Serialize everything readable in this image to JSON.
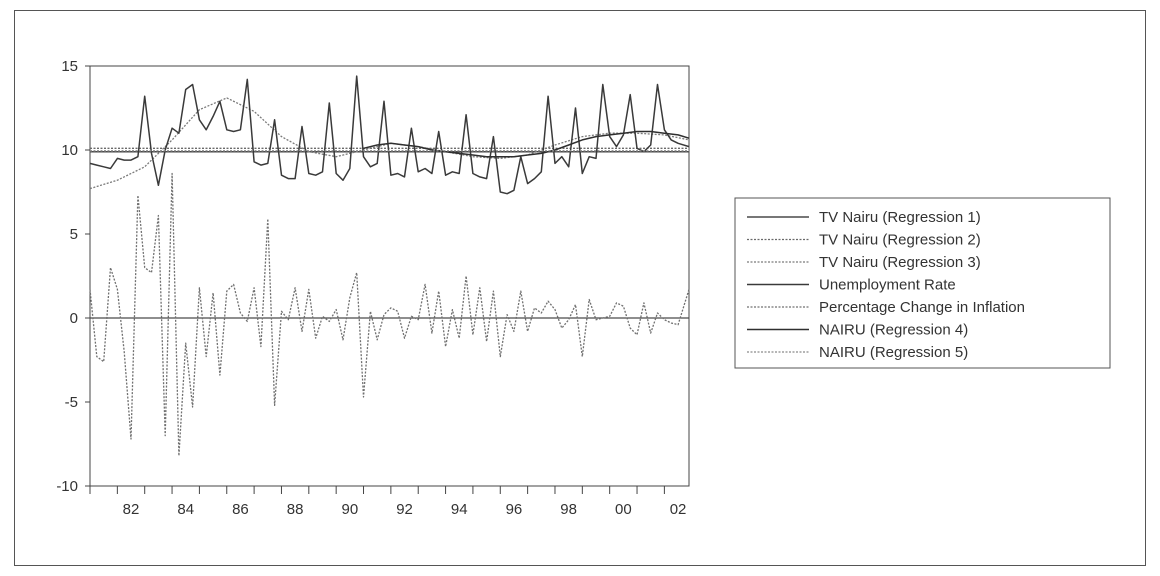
{
  "chart_data": {
    "type": "line",
    "title": "",
    "xlabel": "",
    "ylabel": "",
    "ylim": [
      -10,
      15
    ],
    "xlim": [
      1981,
      2002.9
    ],
    "yticks": [
      15,
      10,
      5,
      0,
      -5,
      -10
    ],
    "ytick_labels": [
      "15",
      "10",
      "5",
      "0",
      "-5",
      "-10"
    ],
    "xticks": [
      1982.5,
      1984.5,
      1986.5,
      1988.5,
      1990.5,
      1992.5,
      1994.5,
      1996.5,
      1998.5,
      2000.5,
      2002.5
    ],
    "xtick_labels": [
      "82",
      "84",
      "86",
      "88",
      "90",
      "92",
      "94",
      "96",
      "98",
      "00",
      "02"
    ],
    "grid": false,
    "legend_position": "right",
    "series": [
      {
        "name": "TV Nairu (Regression 1)",
        "style": "solid",
        "color": "#4a4a4a",
        "x": [
          1981.0,
          2002.9
        ],
        "y": [
          9.9,
          9.9
        ]
      },
      {
        "name": "TV Nairu (Regression 2)",
        "style": "dotted",
        "color": "#6a6a6a",
        "x": [
          1981.0,
          2002.9
        ],
        "y": [
          10.1,
          10.1
        ]
      },
      {
        "name": "TV Nairu (Regression 3)",
        "style": "dotted",
        "color": "#7a7a7a",
        "x": [
          1981.0,
          1982.0,
          1983.0,
          1984.0,
          1985.0,
          1986.0,
          1987.0,
          1988.0,
          1989.0,
          1990.0,
          1991.0,
          1992.0,
          1993.0,
          1994.0,
          1995.0,
          1996.0,
          1997.0,
          1998.0,
          1999.0,
          2000.0,
          2001.0,
          2002.0,
          2002.9
        ],
        "y": [
          7.7,
          8.2,
          9.0,
          10.6,
          12.4,
          13.1,
          12.3,
          10.8,
          9.9,
          9.6,
          10.0,
          10.4,
          10.2,
          9.9,
          9.6,
          9.5,
          9.7,
          10.3,
          10.8,
          11.0,
          11.0,
          10.9,
          10.6
        ]
      },
      {
        "name": "Unemployment Rate",
        "style": "solid",
        "color": "#3a3a3a",
        "x": [
          1981.0,
          1981.25,
          1981.5,
          1981.75,
          1982.0,
          1982.25,
          1982.5,
          1982.75,
          1983.0,
          1983.25,
          1983.5,
          1983.75,
          1984.0,
          1984.25,
          1984.5,
          1984.75,
          1985.0,
          1985.25,
          1985.5,
          1985.75,
          1986.0,
          1986.25,
          1986.5,
          1986.75,
          1987.0,
          1987.25,
          1987.5,
          1987.75,
          1988.0,
          1988.25,
          1988.5,
          1988.75,
          1989.0,
          1989.25,
          1989.5,
          1989.75,
          1990.0,
          1990.25,
          1990.5,
          1990.75,
          1991.0,
          1991.25,
          1991.5,
          1991.75,
          1992.0,
          1992.25,
          1992.5,
          1992.75,
          1993.0,
          1993.25,
          1993.5,
          1993.75,
          1994.0,
          1994.25,
          1994.5,
          1994.75,
          1995.0,
          1995.25,
          1995.5,
          1995.75,
          1996.0,
          1996.25,
          1996.5,
          1996.75,
          1997.0,
          1997.25,
          1997.5,
          1997.75,
          1998.0,
          1998.25,
          1998.5,
          1998.75,
          1999.0,
          1999.25,
          1999.5,
          1999.75,
          2000.0,
          2000.25,
          2000.5,
          2000.75,
          2001.0,
          2001.25,
          2001.5,
          2001.75,
          2002.0,
          2002.25,
          2002.5,
          2002.9
        ],
        "y": [
          9.2,
          9.1,
          9.0,
          8.9,
          9.5,
          9.4,
          9.4,
          9.6,
          13.2,
          9.8,
          7.9,
          10.0,
          11.3,
          11.0,
          13.6,
          13.9,
          11.8,
          11.2,
          12.0,
          12.9,
          11.2,
          11.1,
          11.2,
          14.2,
          9.3,
          9.1,
          9.2,
          11.8,
          8.5,
          8.3,
          8.3,
          11.4,
          8.6,
          8.5,
          8.7,
          12.8,
          8.6,
          8.2,
          8.9,
          14.4,
          9.6,
          9.0,
          9.2,
          12.9,
          8.5,
          8.6,
          8.4,
          11.3,
          8.7,
          8.9,
          8.6,
          11.1,
          8.5,
          8.7,
          8.6,
          12.1,
          8.6,
          8.4,
          8.3,
          10.8,
          7.5,
          7.4,
          7.6,
          9.6,
          8.0,
          8.3,
          8.7,
          13.2,
          9.2,
          9.6,
          9.0,
          12.5,
          8.6,
          9.6,
          9.5,
          13.9,
          10.8,
          10.2,
          10.9,
          13.3,
          10.1,
          9.9,
          10.3,
          13.9,
          11.2,
          10.6,
          10.4,
          10.2
        ]
      },
      {
        "name": "Percentage Change in Inflation",
        "style": "dotted",
        "color": "#707070",
        "x": [
          1981.0,
          1981.25,
          1981.5,
          1981.75,
          1982.0,
          1982.25,
          1982.5,
          1982.75,
          1983.0,
          1983.25,
          1983.5,
          1983.75,
          1984.0,
          1984.25,
          1984.5,
          1984.75,
          1985.0,
          1985.25,
          1985.5,
          1985.75,
          1986.0,
          1986.25,
          1986.5,
          1986.75,
          1987.0,
          1987.25,
          1987.5,
          1987.75,
          1988.0,
          1988.25,
          1988.5,
          1988.75,
          1989.0,
          1989.25,
          1989.5,
          1989.75,
          1990.0,
          1990.25,
          1990.5,
          1990.75,
          1991.0,
          1991.25,
          1991.5,
          1991.75,
          1992.0,
          1992.25,
          1992.5,
          1992.75,
          1993.0,
          1993.25,
          1993.5,
          1993.75,
          1994.0,
          1994.25,
          1994.5,
          1994.75,
          1995.0,
          1995.25,
          1995.5,
          1995.75,
          1996.0,
          1996.25,
          1996.5,
          1996.75,
          1997.0,
          1997.25,
          1997.5,
          1997.75,
          1998.0,
          1998.25,
          1998.5,
          1998.75,
          1999.0,
          1999.25,
          1999.5,
          1999.75,
          2000.0,
          2000.25,
          2000.5,
          2000.75,
          2001.0,
          2001.25,
          2001.5,
          2001.75,
          2002.0,
          2002.25,
          2002.5,
          2002.9
        ],
        "y": [
          1.7,
          -2.3,
          -2.6,
          3.0,
          1.7,
          -2.0,
          -7.2,
          7.3,
          3.0,
          2.7,
          6.1,
          -7.0,
          8.6,
          -8.2,
          -1.5,
          -5.3,
          1.8,
          -2.3,
          1.5,
          -3.4,
          1.6,
          2.0,
          0.3,
          -0.2,
          1.8,
          -1.7,
          5.9,
          -5.2,
          0.4,
          -0.1,
          1.8,
          -0.8,
          1.7,
          -1.2,
          0.1,
          -0.2,
          0.5,
          -1.3,
          1.2,
          2.7,
          -4.7,
          0.4,
          -1.3,
          0.2,
          0.6,
          0.4,
          -1.2,
          0.1,
          -0.1,
          2.0,
          -0.9,
          1.6,
          -1.7,
          0.5,
          -1.2,
          2.5,
          -1.0,
          1.8,
          -1.4,
          1.6,
          -2.3,
          0.2,
          -0.8,
          1.6,
          -0.8,
          0.6,
          0.3,
          1.0,
          0.5,
          -0.6,
          -0.1,
          0.8,
          -2.3,
          1.1,
          -0.1,
          0.0,
          0.1,
          0.9,
          0.7,
          -0.6,
          -1.0,
          0.9,
          -0.9,
          0.3,
          -0.1,
          -0.3,
          -0.4,
          1.7
        ]
      },
      {
        "name": "NAIRU (Regression 4)",
        "style": "solid",
        "color": "#2f2f2f",
        "x": [
          1991.0,
          1991.5,
          1992.0,
          1992.5,
          1993.0,
          1993.5,
          1994.0,
          1994.5,
          1995.0,
          1995.5,
          1996.0,
          1996.5,
          1997.0,
          1997.5,
          1998.0,
          1998.5,
          1999.0,
          1999.5,
          2000.0,
          2000.5,
          2001.0,
          2001.5,
          2002.0,
          2002.5,
          2002.9
        ],
        "y": [
          10.1,
          10.3,
          10.4,
          10.3,
          10.2,
          10.0,
          9.9,
          9.8,
          9.7,
          9.6,
          9.6,
          9.6,
          9.7,
          9.8,
          10.0,
          10.3,
          10.6,
          10.8,
          10.9,
          11.0,
          11.1,
          11.1,
          11.0,
          10.9,
          10.7
        ]
      },
      {
        "name": "NAIRU (Regression 5)",
        "style": "dotted",
        "color": "#8a8a8a",
        "x": [
          1981.0,
          2002.9
        ],
        "y": [
          9.95,
          9.95
        ]
      }
    ]
  }
}
